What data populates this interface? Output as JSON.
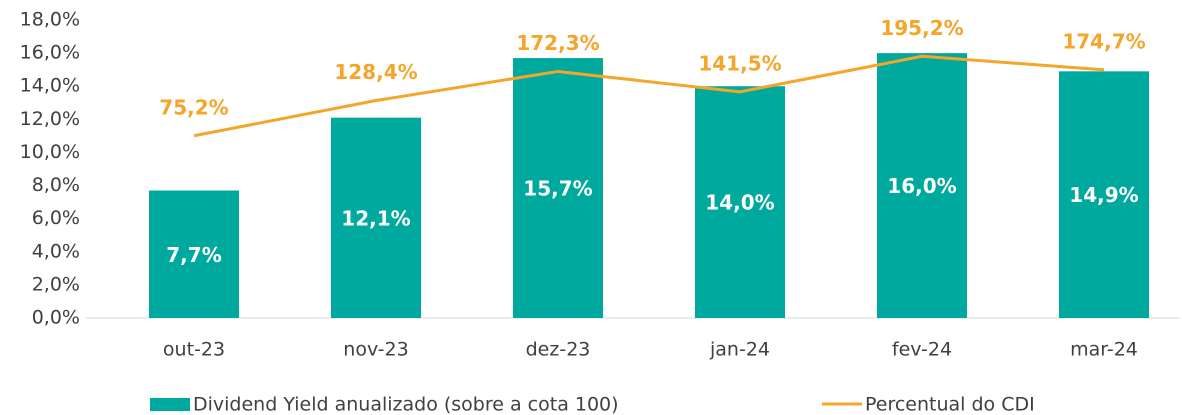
{
  "chart_data": {
    "type": "bar",
    "categories": [
      "out-23",
      "nov-23",
      "dez-23",
      "jan-24",
      "fev-24",
      "mar-24"
    ],
    "series": [
      {
        "name": "Dividend Yield anualizado (sobre a cota 100)",
        "type": "bar",
        "color": "#00a99d",
        "values": [
          7.7,
          12.1,
          15.7,
          14.0,
          16.0,
          14.9
        ],
        "value_labels": [
          "7,7%",
          "12,1%",
          "15,7%",
          "14,0%",
          "16,0%",
          "14,9%"
        ]
      },
      {
        "name": "Percentual do CDI",
        "type": "line",
        "axis": "y2",
        "color": "#f4a52a",
        "values": [
          75.2,
          128.4,
          172.3,
          141.5,
          195.2,
          174.7
        ],
        "value_labels": [
          "75,2%",
          "128,4%",
          "172,3%",
          "141,5%",
          "195,2%",
          "174,7%"
        ]
      }
    ],
    "ylim": [
      0,
      18
    ],
    "yticks": [
      {
        "value": 0,
        "label": "0,0%"
      },
      {
        "value": 2,
        "label": "2,0%"
      },
      {
        "value": 4,
        "label": "4,0%"
      },
      {
        "value": 6,
        "label": "6,0%"
      },
      {
        "value": 8,
        "label": "8,0%"
      },
      {
        "value": 10,
        "label": "10,0%"
      },
      {
        "value": 12,
        "label": "12,0%"
      },
      {
        "value": 14,
        "label": "14,0%"
      },
      {
        "value": 16,
        "label": "16,0%"
      },
      {
        "value": 18,
        "label": "18,0%"
      }
    ],
    "y2lim": [
      -200,
      250
    ],
    "grid": false,
    "legend": "bottom"
  }
}
